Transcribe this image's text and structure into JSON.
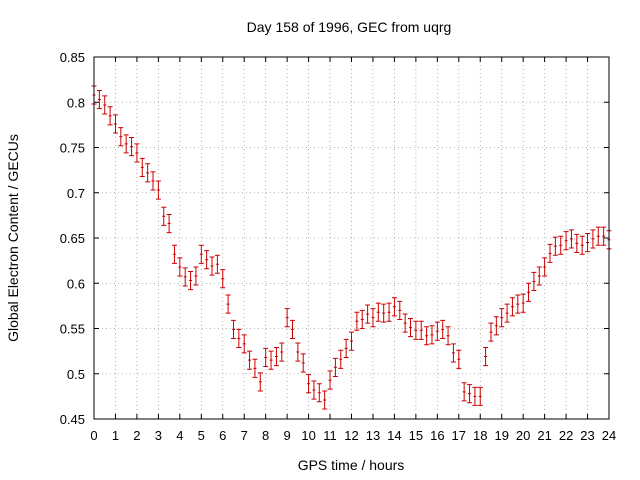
{
  "chart_data": {
    "type": "scatter",
    "title": "Day 158 of 1996, GEC from uqrg",
    "xlabel": "GPS time / hours",
    "ylabel": "Global Electron Content / GECUs",
    "xlim": [
      0,
      24
    ],
    "ylim": [
      0.45,
      0.85
    ],
    "xticks": [
      0,
      1,
      2,
      3,
      4,
      5,
      6,
      7,
      8,
      9,
      10,
      11,
      12,
      13,
      14,
      15,
      16,
      17,
      18,
      19,
      20,
      21,
      22,
      23,
      24
    ],
    "yticks": [
      0.45,
      0.5,
      0.55,
      0.6,
      0.65,
      0.7,
      0.75,
      0.8,
      0.85
    ],
    "grid": true,
    "marker_color": "#cc0000",
    "error_bar": 0.01,
    "points": [
      [
        0.0,
        0.808
      ],
      [
        0.25,
        0.803
      ],
      [
        0.5,
        0.797
      ],
      [
        0.75,
        0.785
      ],
      [
        1.0,
        0.776
      ],
      [
        1.25,
        0.762
      ],
      [
        1.5,
        0.754
      ],
      [
        1.75,
        0.751
      ],
      [
        2.0,
        0.744
      ],
      [
        2.25,
        0.728
      ],
      [
        2.5,
        0.722
      ],
      [
        2.75,
        0.713
      ],
      [
        3.0,
        0.703
      ],
      [
        3.25,
        0.674
      ],
      [
        3.5,
        0.666
      ],
      [
        3.75,
        0.632
      ],
      [
        4.0,
        0.618
      ],
      [
        4.25,
        0.607
      ],
      [
        4.5,
        0.603
      ],
      [
        4.75,
        0.608
      ],
      [
        5.0,
        0.632
      ],
      [
        5.25,
        0.626
      ],
      [
        5.5,
        0.619
      ],
      [
        5.75,
        0.621
      ],
      [
        6.0,
        0.605
      ],
      [
        6.25,
        0.577
      ],
      [
        6.5,
        0.549
      ],
      [
        6.75,
        0.539
      ],
      [
        7.0,
        0.533
      ],
      [
        7.25,
        0.515
      ],
      [
        7.5,
        0.506
      ],
      [
        7.75,
        0.491
      ],
      [
        8.0,
        0.518
      ],
      [
        8.25,
        0.515
      ],
      [
        8.5,
        0.519
      ],
      [
        8.75,
        0.524
      ],
      [
        9.0,
        0.562
      ],
      [
        9.25,
        0.549
      ],
      [
        9.5,
        0.524
      ],
      [
        9.75,
        0.512
      ],
      [
        10.0,
        0.489
      ],
      [
        10.25,
        0.482
      ],
      [
        10.5,
        0.479
      ],
      [
        10.75,
        0.471
      ],
      [
        11.0,
        0.493
      ],
      [
        11.25,
        0.507
      ],
      [
        11.5,
        0.516
      ],
      [
        11.75,
        0.528
      ],
      [
        12.0,
        0.536
      ],
      [
        12.25,
        0.558
      ],
      [
        12.5,
        0.56
      ],
      [
        12.75,
        0.566
      ],
      [
        13.0,
        0.562
      ],
      [
        13.25,
        0.568
      ],
      [
        13.5,
        0.567
      ],
      [
        13.75,
        0.568
      ],
      [
        14.0,
        0.574
      ],
      [
        14.25,
        0.57
      ],
      [
        14.5,
        0.556
      ],
      [
        14.75,
        0.551
      ],
      [
        15.0,
        0.548
      ],
      [
        15.25,
        0.548
      ],
      [
        15.5,
        0.542
      ],
      [
        15.75,
        0.543
      ],
      [
        16.0,
        0.547
      ],
      [
        16.25,
        0.549
      ],
      [
        16.5,
        0.542
      ],
      [
        16.75,
        0.523
      ],
      [
        17.0,
        0.516
      ],
      [
        17.25,
        0.48
      ],
      [
        17.5,
        0.478
      ],
      [
        17.75,
        0.475
      ],
      [
        18.0,
        0.475
      ],
      [
        18.25,
        0.519
      ],
      [
        18.5,
        0.546
      ],
      [
        18.75,
        0.553
      ],
      [
        19.0,
        0.562
      ],
      [
        19.25,
        0.567
      ],
      [
        19.5,
        0.574
      ],
      [
        19.75,
        0.577
      ],
      [
        20.0,
        0.578
      ],
      [
        20.25,
        0.59
      ],
      [
        20.5,
        0.602
      ],
      [
        20.75,
        0.608
      ],
      [
        21.0,
        0.618
      ],
      [
        21.25,
        0.633
      ],
      [
        21.5,
        0.641
      ],
      [
        21.75,
        0.642
      ],
      [
        22.0,
        0.647
      ],
      [
        22.25,
        0.649
      ],
      [
        22.5,
        0.644
      ],
      [
        22.75,
        0.642
      ],
      [
        23.0,
        0.645
      ],
      [
        23.25,
        0.649
      ],
      [
        23.5,
        0.652
      ],
      [
        23.75,
        0.652
      ],
      [
        24.0,
        0.648
      ]
    ]
  }
}
